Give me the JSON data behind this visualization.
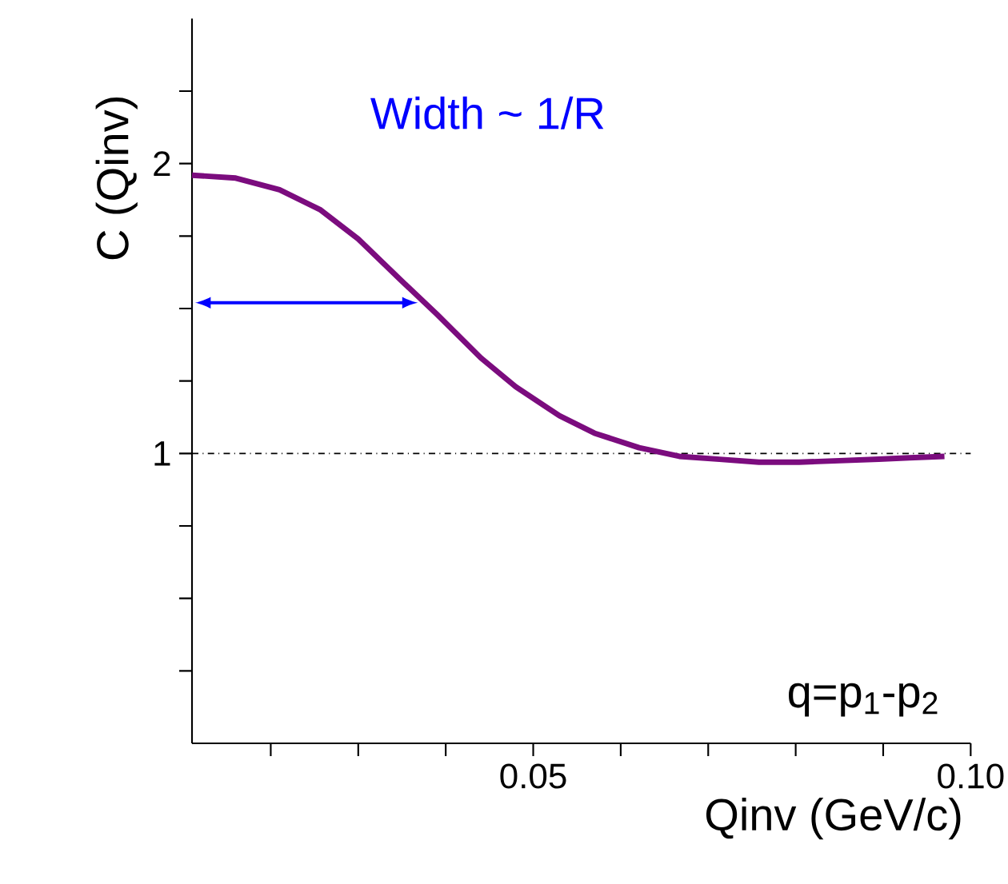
{
  "chart_data": {
    "type": "line",
    "xlabel": "Qinv (GeV/c)",
    "ylabel": "C (Qinv)",
    "xlim": [
      0.011,
      0.1
    ],
    "ylim": [
      0,
      2.5
    ],
    "xticks": [
      {
        "value": 0.02,
        "label": null
      },
      {
        "value": 0.03,
        "label": null
      },
      {
        "value": 0.04,
        "label": null
      },
      0.05,
      {
        "value": 0.06,
        "label": null
      },
      {
        "value": 0.07,
        "label": null
      },
      {
        "value": 0.08,
        "label": null
      },
      {
        "value": 0.09,
        "label": null
      },
      {
        "value": 0.1,
        "label": "0.10"
      }
    ],
    "yticks": [
      {
        "value": 0.25,
        "label": null
      },
      {
        "value": 0.5,
        "label": null
      },
      {
        "value": 0.75,
        "label": null
      },
      1,
      {
        "value": 1.25,
        "label": null
      },
      {
        "value": 1.5,
        "label": null
      },
      {
        "value": 1.75,
        "label": null
      },
      2,
      {
        "value": 2.25,
        "label": null
      }
    ],
    "series": [
      {
        "color": "#7b0c7e",
        "x": [
          0.011,
          0.016,
          0.021,
          0.0257,
          0.03,
          0.0348,
          0.039,
          0.044,
          0.048,
          0.053,
          0.057,
          0.0621,
          0.0667,
          0.0713,
          0.0758,
          0.0804,
          0.085,
          0.0895,
          0.093,
          0.097
        ],
        "values": [
          1.96,
          1.95,
          1.91,
          1.84,
          1.74,
          1.6,
          1.48,
          1.33,
          1.23,
          1.13,
          1.07,
          1.02,
          0.99,
          0.98,
          0.97,
          0.97,
          0.975,
          0.98,
          0.985,
          0.99
        ]
      }
    ],
    "ref_lines": [
      {
        "axis": "y",
        "value": 1,
        "color": "#000000",
        "line_style": "dashdot"
      }
    ],
    "annotations": [
      "Width ~ 1/R",
      "q=p$_{1}$-p$_{2}$"
    ]
  }
}
